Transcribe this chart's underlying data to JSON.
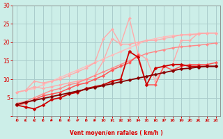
{
  "background_color": "#cceee8",
  "grid_color": "#aacccc",
  "xlabel": "Vent moyen/en rafales ( km/h )",
  "xlabel_color": "#dd0000",
  "tick_color": "#dd0000",
  "xlim": [
    -0.5,
    23.5
  ],
  "ylim": [
    0,
    30
  ],
  "yticks": [
    0,
    5,
    10,
    15,
    20,
    25,
    30
  ],
  "xticks": [
    0,
    1,
    2,
    3,
    4,
    5,
    6,
    7,
    8,
    9,
    10,
    11,
    12,
    13,
    14,
    15,
    16,
    17,
    18,
    19,
    20,
    21,
    22,
    23
  ],
  "lines": [
    {
      "x": [
        0,
        1,
        2,
        3,
        4,
        5,
        6,
        7,
        8,
        9,
        10,
        11,
        12,
        13,
        14,
        15,
        16,
        17,
        18,
        19,
        20,
        21,
        22,
        23
      ],
      "y": [
        6.5,
        7.0,
        7.5,
        8.5,
        9.5,
        10.5,
        11.5,
        12.5,
        13.5,
        14.5,
        15.5,
        16.5,
        17.5,
        18.5,
        19.5,
        20.5,
        21.0,
        21.5,
        21.8,
        22.0,
        22.2,
        22.3,
        22.4,
        22.5
      ],
      "color": "#ffbbbb",
      "lw": 1.0,
      "marker": "D",
      "ms": 2.0
    },
    {
      "x": [
        0,
        1,
        2,
        3,
        4,
        5,
        6,
        7,
        8,
        9,
        10,
        11,
        12,
        13,
        14,
        15,
        16,
        17,
        18,
        19,
        20,
        21,
        22,
        23
      ],
      "y": [
        6.5,
        7.0,
        9.5,
        9.0,
        9.5,
        10.0,
        11.0,
        12.0,
        13.0,
        14.5,
        21.0,
        23.5,
        19.5,
        19.5,
        20.0,
        20.5,
        20.5,
        21.0,
        21.5,
        22.0,
        22.0,
        22.3,
        22.5,
        22.5
      ],
      "color": "#ffaaaa",
      "lw": 1.0,
      "marker": "D",
      "ms": 2.0
    },
    {
      "x": [
        0,
        1,
        2,
        3,
        4,
        5,
        6,
        7,
        8,
        9,
        10,
        11,
        12,
        13,
        14,
        15,
        16,
        17,
        18,
        19,
        20,
        21,
        22,
        23
      ],
      "y": [
        6.5,
        7.0,
        8.0,
        7.5,
        8.0,
        8.5,
        9.0,
        9.5,
        10.0,
        11.0,
        15.0,
        21.0,
        19.5,
        26.5,
        17.0,
        15.5,
        9.5,
        13.5,
        14.0,
        20.5,
        20.5,
        22.5,
        22.5,
        22.5
      ],
      "color": "#ffaaaa",
      "lw": 1.0,
      "marker": "D",
      "ms": 2.0
    },
    {
      "x": [
        0,
        1,
        2,
        3,
        4,
        5,
        6,
        7,
        8,
        9,
        10,
        11,
        12,
        13,
        14,
        15,
        16,
        17,
        18,
        19,
        20,
        21,
        22,
        23
      ],
      "y": [
        3.5,
        4.0,
        5.0,
        6.0,
        7.0,
        7.5,
        8.5,
        9.0,
        10.0,
        11.0,
        12.0,
        13.0,
        14.0,
        15.0,
        16.0,
        17.0,
        17.5,
        18.0,
        18.5,
        18.8,
        19.0,
        19.2,
        19.5,
        19.8
      ],
      "color": "#ff8888",
      "lw": 1.0,
      "marker": "D",
      "ms": 2.0
    },
    {
      "x": [
        0,
        1,
        2,
        3,
        4,
        5,
        6,
        7,
        8,
        9,
        10,
        11,
        12,
        13,
        14,
        15,
        16,
        17,
        18,
        19,
        20,
        21,
        22,
        23
      ],
      "y": [
        3.0,
        3.5,
        4.5,
        5.5,
        6.0,
        6.5,
        7.5,
        8.5,
        9.0,
        10.0,
        11.0,
        12.5,
        13.5,
        14.5,
        16.5,
        8.5,
        8.5,
        13.5,
        12.5,
        13.5,
        14.0,
        14.0,
        14.0,
        14.5
      ],
      "color": "#ff5555",
      "lw": 1.1,
      "marker": "D",
      "ms": 2.2
    },
    {
      "x": [
        0,
        1,
        2,
        3,
        4,
        5,
        6,
        7,
        8,
        9,
        10,
        11,
        12,
        13,
        14,
        15,
        16,
        17,
        18,
        19,
        20,
        21,
        22,
        23
      ],
      "y": [
        3.0,
        2.5,
        2.0,
        3.0,
        4.5,
        5.0,
        6.0,
        6.5,
        7.5,
        8.0,
        8.5,
        9.5,
        10.0,
        17.5,
        16.0,
        8.5,
        13.0,
        13.5,
        14.0,
        14.0,
        13.5,
        13.5,
        13.5,
        13.5
      ],
      "color": "#cc0000",
      "lw": 1.3,
      "marker": "D",
      "ms": 2.5
    },
    {
      "x": [
        0,
        1,
        2,
        3,
        4,
        5,
        6,
        7,
        8,
        9,
        10,
        11,
        12,
        13,
        14,
        15,
        16,
        17,
        18,
        19,
        20,
        21,
        22,
        23
      ],
      "y": [
        3.2,
        3.8,
        4.3,
        4.8,
        5.3,
        5.8,
        6.3,
        6.8,
        7.3,
        7.8,
        8.3,
        8.8,
        9.3,
        9.8,
        10.3,
        10.8,
        11.3,
        11.8,
        12.3,
        12.8,
        13.0,
        13.3,
        13.5,
        13.5
      ],
      "color": "#880000",
      "lw": 1.3,
      "marker": "D",
      "ms": 2.5
    }
  ],
  "wind_arrow_color": "#cc0000",
  "wind_arrow_fontsize": 5
}
